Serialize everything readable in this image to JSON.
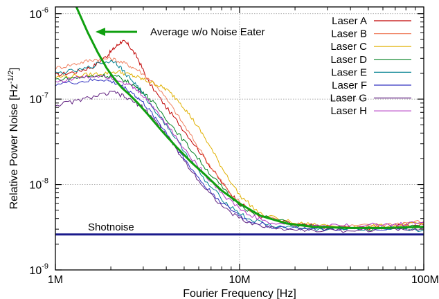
{
  "chart_data": {
    "type": "line",
    "xlabel": "Fourier Frequency [Hz]",
    "ylabel_main": "Relative Power Noise [Hz",
    "ylabel_exp": "-1/2",
    "ylabel_end": "]",
    "x_scale": "log",
    "y_scale": "log",
    "xlim": [
      1000000,
      100000000
    ],
    "ylim": [
      1e-09,
      1.2e-06
    ],
    "grid": true,
    "legend_position": "top-right",
    "x_ticks": [
      {
        "value": 1000000,
        "label": "1M"
      },
      {
        "value": 10000000,
        "label": "10M"
      },
      {
        "value": 100000000,
        "label": "100M"
      }
    ],
    "y_ticks": [
      {
        "value": 1e-09,
        "base": "10",
        "exp": "-9"
      },
      {
        "value": 1e-08,
        "base": "10",
        "exp": "-8"
      },
      {
        "value": 1e-07,
        "base": "10",
        "exp": "-7"
      },
      {
        "value": 1e-06,
        "base": "10",
        "exp": "-6"
      }
    ],
    "series": [
      {
        "name": "Laser A",
        "color": "#c00000",
        "x": [
          1000000,
          1300000,
          1600000,
          1900000,
          2100000,
          2300000,
          2500000,
          2800000,
          3200000,
          4000000,
          5000000,
          6500000,
          8000000,
          10000000,
          13000000,
          20000000,
          30000000,
          50000000,
          70000000,
          100000000
        ],
        "y": [
          1.9e-07,
          2.1e-07,
          2.4e-07,
          3.2e-07,
          4e-07,
          4.8e-07,
          4.3e-07,
          3e-07,
          1.6e-07,
          8e-08,
          4.3e-08,
          2e-08,
          1.05e-08,
          6e-09,
          4.2e-09,
          3.4e-09,
          3.2e-09,
          3.1e-09,
          3.2e-09,
          3.4e-09
        ]
      },
      {
        "name": "Laser B",
        "color": "#f08060",
        "x": [
          1000000,
          1300000,
          1600000,
          2000000,
          2400000,
          2800000,
          3500000,
          4500000,
          5500000,
          7000000,
          9000000,
          12000000,
          20000000,
          30000000,
          50000000,
          70000000,
          100000000
        ],
        "y": [
          2.3e-07,
          2.6e-07,
          2.9e-07,
          3e-07,
          2.6e-07,
          2.2e-07,
          1.5e-07,
          7e-08,
          3.6e-08,
          1.6e-08,
          7.5e-09,
          4.5e-09,
          3.4e-09,
          3.2e-09,
          3.3e-09,
          3.5e-09,
          3.7e-09
        ]
      },
      {
        "name": "Laser C",
        "color": "#e0b000",
        "x": [
          1000000,
          1400000,
          1800000,
          2200000,
          2600000,
          3000000,
          3500000,
          4000000,
          4700000,
          5500000,
          6500000,
          8000000,
          10000000,
          13000000,
          20000000,
          30000000,
          50000000,
          70000000,
          100000000
        ],
        "y": [
          1.8e-07,
          1.9e-07,
          2e-07,
          2.1e-07,
          1.9e-07,
          1.7e-07,
          1.5e-07,
          1.3e-07,
          9.5e-08,
          6e-08,
          3.5e-08,
          1.6e-08,
          7.5e-09,
          4.5e-09,
          3.5e-09,
          3.3e-09,
          3.2e-09,
          3.3e-09,
          3.5e-09
        ]
      },
      {
        "name": "Laser D",
        "color": "#008020",
        "x": [
          1000000,
          1400000,
          1800000,
          2200000,
          2600000,
          3000000,
          3500000,
          4500000,
          5500000,
          7000000,
          9000000,
          12000000,
          20000000,
          30000000,
          50000000,
          70000000,
          100000000
        ],
        "y": [
          1.7e-07,
          1.8e-07,
          1.9e-07,
          1.8e-07,
          1.5e-07,
          1.2e-07,
          8.5e-08,
          4.3e-08,
          2.5e-08,
          1.3e-08,
          7e-09,
          4.5e-09,
          3.4e-09,
          3.1e-09,
          3e-09,
          3.1e-09,
          3.3e-09
        ]
      },
      {
        "name": "Laser E",
        "color": "#008090",
        "x": [
          1000000,
          1400000,
          1800000,
          2100000,
          2400000,
          2800000,
          3300000,
          4000000,
          5000000,
          6500000,
          8500000,
          11000000,
          15000000,
          25000000,
          40000000,
          70000000,
          100000000
        ],
        "y": [
          2e-07,
          2.2e-07,
          2.7e-07,
          2.8e-07,
          2e-07,
          1.4e-07,
          8.5e-08,
          5e-08,
          2.5e-08,
          1.1e-08,
          6e-09,
          4e-09,
          3.3e-09,
          3e-09,
          3e-09,
          3.1e-09,
          2.9e-09
        ]
      },
      {
        "name": "Laser F",
        "color": "#3030c0",
        "x": [
          1000000,
          1400000,
          1800000,
          2200000,
          2600000,
          3000000,
          3500000,
          4200000,
          5000000,
          6500000,
          8500000,
          11000000,
          15000000,
          25000000,
          40000000,
          70000000,
          100000000
        ],
        "y": [
          1.5e-07,
          1.6e-07,
          1.7e-07,
          1.5e-07,
          1.2e-07,
          9e-08,
          6e-08,
          3.5e-08,
          2e-08,
          9.5e-09,
          5.5e-09,
          3.8e-09,
          3.2e-09,
          3e-09,
          3e-09,
          3.1e-09,
          3.2e-09
        ]
      },
      {
        "name": "Laser G",
        "color": "#602080",
        "x": [
          1000000,
          1300000,
          1700000,
          2100000,
          2500000,
          3000000,
          3500000,
          4200000,
          5000000,
          6500000,
          8500000,
          11000000,
          15000000,
          25000000,
          40000000,
          70000000,
          100000000
        ],
        "y": [
          8.5e-08,
          9.5e-08,
          1.1e-07,
          1.2e-07,
          1e-07,
          8e-08,
          5.5e-08,
          3.3e-08,
          1.9e-08,
          9e-09,
          5e-09,
          3.6e-09,
          3.1e-09,
          2.9e-09,
          2.9e-09,
          3e-09,
          3.1e-09
        ]
      },
      {
        "name": "Laser H",
        "color": "#b030c0",
        "x": [
          1000000,
          1400000,
          1800000,
          2200000,
          2600000,
          3000000,
          3500000,
          4200000,
          5000000,
          6500000,
          8500000,
          11000000,
          15000000,
          25000000,
          40000000,
          70000000,
          100000000
        ],
        "y": [
          1.6e-07,
          1.8e-07,
          1.9e-07,
          1.7e-07,
          1.4e-07,
          1.1e-07,
          7.5e-08,
          4.5e-08,
          2.6e-08,
          1.3e-08,
          7e-09,
          4.5e-09,
          3.5e-09,
          3.3e-09,
          3.3e-09,
          3.4e-09,
          3.6e-09
        ]
      }
    ],
    "annotations": {
      "average": {
        "label": "Average w/o Noise Eater",
        "color": "#10a010",
        "x": [
          1300000,
          1500000,
          1700000,
          1900000,
          2100000,
          2300000,
          2500000,
          2800000,
          3200000,
          3800000,
          4500000,
          5500000,
          6500000,
          8000000,
          10000000,
          13000000,
          18000000,
          25000000,
          40000000,
          60000000,
          100000000
        ],
        "y": [
          1.2e-06,
          6e-07,
          3.5e-07,
          2.3e-07,
          1.7e-07,
          1.35e-07,
          1.15e-07,
          9e-08,
          6.5e-08,
          4.2e-08,
          2.8e-08,
          1.8e-08,
          1.3e-08,
          8.5e-09,
          6e-09,
          4.3e-09,
          3.5e-09,
          3.2e-09,
          3.1e-09,
          3.1e-09,
          3.2e-09
        ]
      },
      "shotnoise": {
        "label": "Shotnoise",
        "value": 2.6e-09,
        "color": "#1a1a8c"
      }
    }
  }
}
